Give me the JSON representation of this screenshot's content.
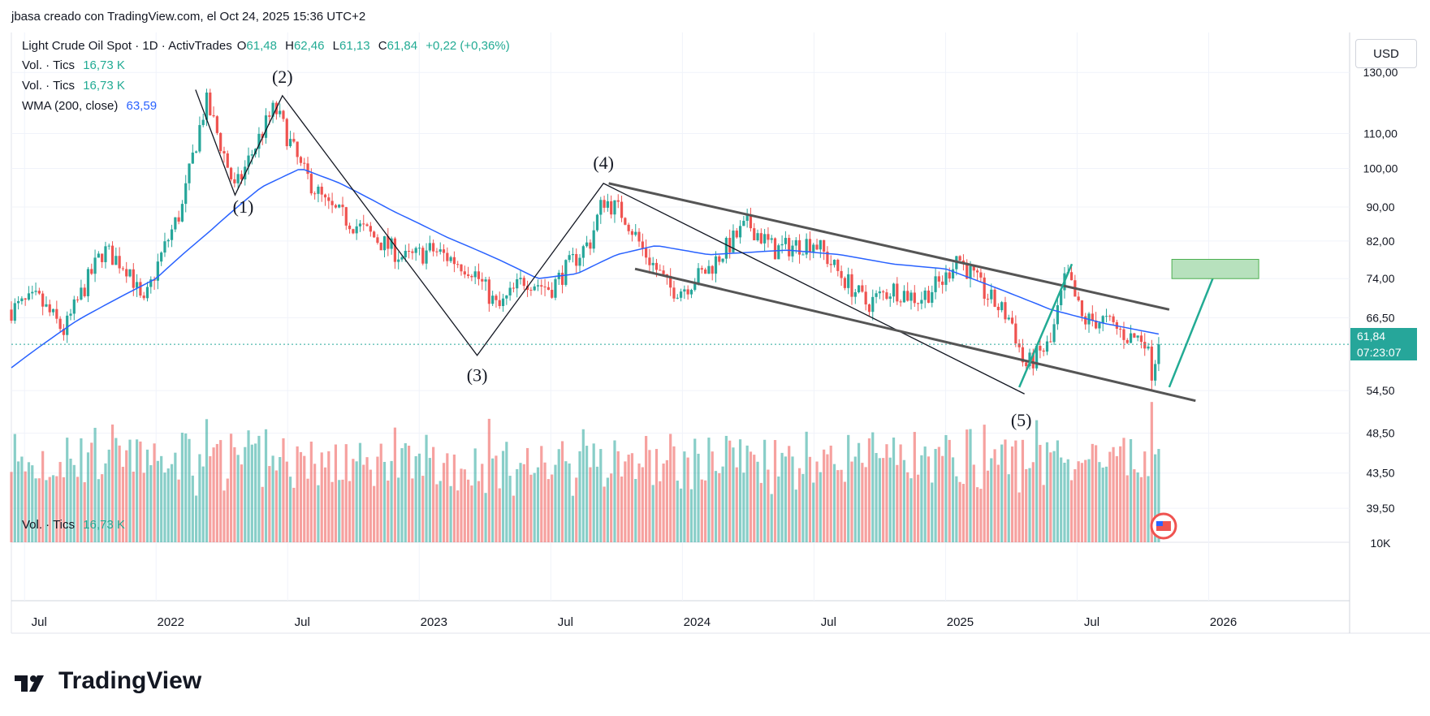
{
  "credit": "jbasa creado con TradingView.com, el Oct 24, 2025 15:36 UTC+2",
  "header": {
    "symbol": "Light Crude Oil Spot · 1D · ActivTrades",
    "o_label": "O",
    "o": "61,48",
    "h_label": "H",
    "h": "62,46",
    "l_label": "L",
    "l": "61,13",
    "c_label": "C",
    "c": "61,84",
    "change": "+0,22 (+0,36%)",
    "vol1_label": "Vol. · Tics",
    "vol1_value": "16,73 K",
    "vol2_label": "Vol. · Tics",
    "vol2_value": "16,73 K",
    "wma_label": "WMA (200, close)",
    "wma_value": "63,59"
  },
  "volume_pane": {
    "label": "Vol. · Tics",
    "value": "16,73 K",
    "axis_label": "10K"
  },
  "currency": "USD",
  "last_price": {
    "value": "61,84",
    "countdown": "07:23:07"
  },
  "colors": {
    "up": "#26a69a",
    "down": "#ef5350",
    "wma": "#2962ff",
    "trend": "#555555",
    "projection": "#22ab94",
    "target_fill": "#b7e1bd"
  },
  "logo_text": "TradingView",
  "chart_data": {
    "type": "candlestick",
    "title": "Light Crude Oil Spot · 1D · ActivTrades",
    "x_range": [
      2021.45,
      2026.52
    ],
    "ylim_log": [
      36,
      145
    ],
    "y_ticks": [
      130,
      110,
      100,
      90,
      82,
      74,
      66.5,
      54.5,
      48.5,
      43.5,
      39.5
    ],
    "y_tick_labels": [
      "130,00",
      "110,00",
      "100,00",
      "90,00",
      "82,00",
      "74,00",
      "66,50",
      "54,50",
      "48,50",
      "43,50",
      "39,50"
    ],
    "x_ticks": [
      2021.5,
      2022.0,
      2022.5,
      2023.0,
      2023.5,
      2024.0,
      2024.5,
      2025.0,
      2025.5,
      2026.0
    ],
    "x_tick_labels": [
      "Jul",
      "2022",
      "Jul",
      "2023",
      "Jul",
      "2024",
      "Jul",
      "2025",
      "Jul",
      "2026"
    ],
    "price_path": [
      [
        2021.45,
        68
      ],
      [
        2021.55,
        70
      ],
      [
        2021.65,
        64
      ],
      [
        2021.8,
        80
      ],
      [
        2021.9,
        76
      ],
      [
        2021.95,
        68
      ],
      [
        2022.0,
        76
      ],
      [
        2022.1,
        90
      ],
      [
        2022.19,
        120
      ],
      [
        2022.3,
        94
      ],
      [
        2022.45,
        118
      ],
      [
        2022.55,
        100
      ],
      [
        2022.65,
        90
      ],
      [
        2022.8,
        84
      ],
      [
        2022.95,
        78
      ],
      [
        2023.05,
        80
      ],
      [
        2023.2,
        76
      ],
      [
        2023.3,
        68
      ],
      [
        2023.4,
        74
      ],
      [
        2023.5,
        72
      ],
      [
        2023.65,
        82
      ],
      [
        2023.7,
        92
      ],
      [
        2023.78,
        88
      ],
      [
        2023.85,
        80
      ],
      [
        2023.95,
        72
      ],
      [
        2024.0,
        72
      ],
      [
        2024.1,
        76
      ],
      [
        2024.25,
        86
      ],
      [
        2024.35,
        80
      ],
      [
        2024.5,
        82
      ],
      [
        2024.58,
        76
      ],
      [
        2024.7,
        69
      ],
      [
        2024.8,
        72
      ],
      [
        2024.9,
        70
      ],
      [
        2025.0,
        74
      ],
      [
        2025.04,
        79
      ],
      [
        2025.15,
        71
      ],
      [
        2025.25,
        66
      ],
      [
        2025.3,
        58
      ],
      [
        2025.4,
        62
      ],
      [
        2025.46,
        75
      ],
      [
        2025.52,
        66
      ],
      [
        2025.6,
        66
      ],
      [
        2025.7,
        63
      ],
      [
        2025.76,
        63
      ],
      [
        2025.78,
        57
      ],
      [
        2025.81,
        61.84
      ]
    ],
    "wma_path": [
      [
        2021.45,
        58
      ],
      [
        2021.7,
        66
      ],
      [
        2022.0,
        74
      ],
      [
        2022.2,
        84
      ],
      [
        2022.4,
        95
      ],
      [
        2022.55,
        100
      ],
      [
        2022.7,
        96
      ],
      [
        2022.9,
        89
      ],
      [
        2023.1,
        83
      ],
      [
        2023.3,
        78
      ],
      [
        2023.45,
        74
      ],
      [
        2023.6,
        75
      ],
      [
        2023.75,
        79
      ],
      [
        2023.9,
        81
      ],
      [
        2024.1,
        79
      ],
      [
        2024.4,
        80
      ],
      [
        2024.6,
        79
      ],
      [
        2024.8,
        77
      ],
      [
        2025.0,
        76
      ],
      [
        2025.2,
        72
      ],
      [
        2025.4,
        68
      ],
      [
        2025.6,
        65.5
      ],
      [
        2025.81,
        63.59
      ]
    ],
    "wave_labels": [
      "(1)",
      "(2)",
      "(3)",
      "(4)",
      "(5)"
    ],
    "wave_points": [
      [
        2022.15,
        124
      ],
      [
        2022.3,
        93
      ],
      [
        2022.48,
        122
      ],
      [
        2023.22,
        60
      ],
      [
        2023.7,
        96
      ],
      [
        2025.3,
        54
      ]
    ],
    "channel_upper": [
      [
        2023.72,
        96
      ],
      [
        2025.85,
        68
      ]
    ],
    "channel_lower": [
      [
        2023.82,
        76
      ],
      [
        2025.95,
        53
      ]
    ],
    "projection_up": [
      [
        2025.28,
        55
      ],
      [
        2025.48,
        77
      ]
    ],
    "projection_target": [
      [
        2025.85,
        55
      ],
      [
        2026.03,
        76
      ]
    ],
    "target_zone": {
      "x": [
        2025.86,
        2026.19
      ],
      "y": [
        74,
        78
      ]
    },
    "last_close": 61.84,
    "wma_last": 63.59
  }
}
